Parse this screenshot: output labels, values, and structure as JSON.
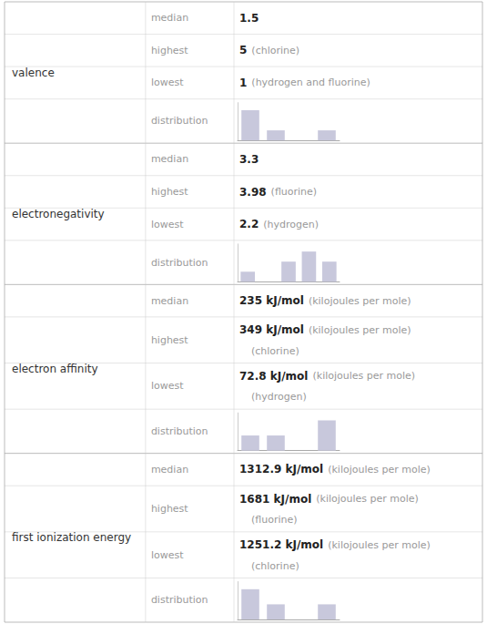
{
  "chart_data": [
    {
      "type": "bar",
      "title": "valence",
      "annotations": [
        {
          "label": "median",
          "value": "1.5"
        },
        {
          "label": "highest",
          "value": "5",
          "note": "(chlorine)"
        },
        {
          "label": "lowest",
          "value": "1",
          "note": "(hydrogen and fluorine)"
        }
      ],
      "ylabel": "distribution",
      "categories": [
        null,
        null,
        null,
        null
      ],
      "values": [
        3,
        1,
        0,
        1
      ],
      "ylim": [
        0,
        3.75
      ],
      "tick_labels": false,
      "color": "#c8c8dc"
    },
    {
      "type": "bar",
      "title": "electronegativity",
      "annotations": [
        {
          "label": "median",
          "value": "3.3"
        },
        {
          "label": "highest",
          "value": "3.98",
          "note": "(fluorine)"
        },
        {
          "label": "lowest",
          "value": "2.2",
          "note": "(hydrogen)"
        }
      ],
      "ylabel": "distribution",
      "categories": [
        null,
        null,
        null,
        null,
        null
      ],
      "values": [
        1,
        0,
        2,
        3,
        2
      ],
      "ylim": [
        0,
        3.75
      ],
      "tick_labels": false,
      "color": "#c8c8dc"
    },
    {
      "type": "bar",
      "title": "electron affinity",
      "annotations": [
        {
          "label": "median",
          "value": "235 kJ/mol",
          "note": "(kilojoules per mole)"
        },
        {
          "label": "highest",
          "value": "349 kJ/mol",
          "note": "(kilojoules per mole)",
          "line2": "(chlorine)"
        },
        {
          "label": "lowest",
          "value": "72.8 kJ/mol",
          "note": "(kilojoules per mole)",
          "line2": "(hydrogen)"
        }
      ],
      "ylabel": "distribution",
      "categories": [
        null,
        null,
        null,
        null
      ],
      "values": [
        1,
        1,
        0,
        2
      ],
      "ylim": [
        0,
        2.5
      ],
      "tick_labels": false,
      "color": "#c8c8dc"
    },
    {
      "type": "bar",
      "title": "first ionization energy",
      "annotations": [
        {
          "label": "median",
          "value": "1312.9 kJ/mol",
          "note": "(kilojoules per mole)"
        },
        {
          "label": "highest",
          "value": "1681 kJ/mol",
          "note": "(kilojoules per mole)",
          "line2": "(fluorine)"
        },
        {
          "label": "lowest",
          "value": "1251.2 kJ/mol",
          "note": "(kilojoules per mole)",
          "line2": "(chlorine)"
        }
      ],
      "ylabel": "distribution",
      "categories": [
        null,
        null,
        null,
        null
      ],
      "values": [
        2,
        1,
        0,
        1
      ],
      "ylim": [
        0,
        2.5
      ],
      "tick_labels": false,
      "color": "#c8c8dc"
    }
  ]
}
